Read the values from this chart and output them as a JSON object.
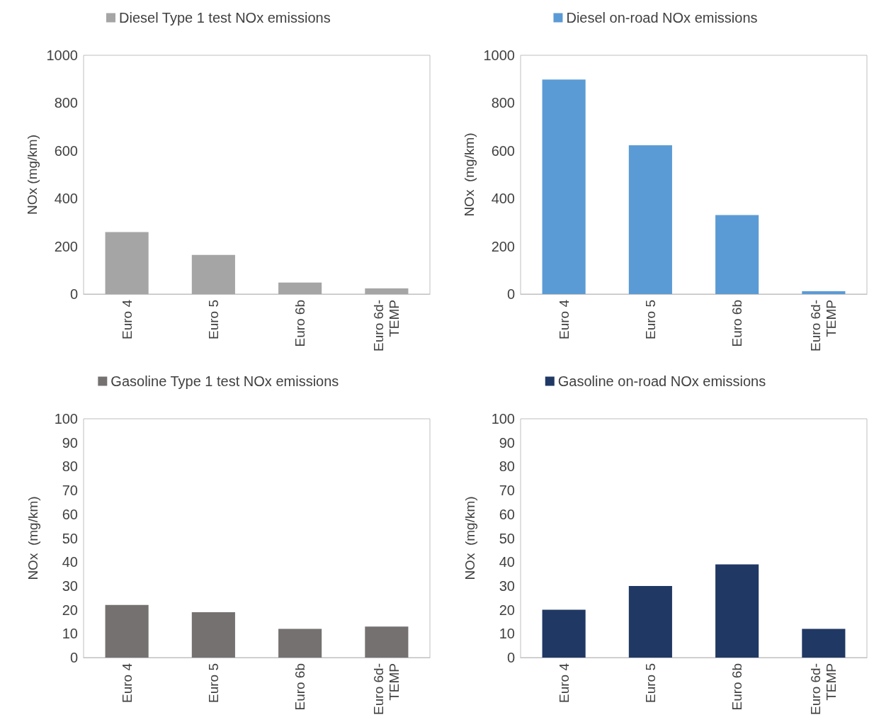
{
  "chart_data": [
    {
      "type": "bar",
      "categories": [
        "Euro 4",
        "Euro 5",
        "Euro 6b",
        "Euro 6d-TEMP"
      ],
      "series": [
        {
          "name": "Diesel Type 1 test NOx emissions",
          "color": "#a5a5a5",
          "values": [
            260,
            164,
            48,
            24
          ]
        }
      ],
      "ylabel": "NOx (mg/km)",
      "ylim": [
        0,
        1000
      ],
      "yticks": [
        0,
        200,
        400,
        600,
        800,
        1000
      ],
      "legend": "top",
      "grid": false
    },
    {
      "type": "bar",
      "categories": [
        "Euro 4",
        "Euro 5",
        "Euro 6b",
        "Euro 6d-TEMP"
      ],
      "series": [
        {
          "name": "Diesel on-road NOx emissions",
          "color": "#5b9bd5",
          "values": [
            898,
            623,
            331,
            12
          ]
        }
      ],
      "ylabel": "NOx  (mg/km)",
      "ylim": [
        0,
        1000
      ],
      "yticks": [
        0,
        200,
        400,
        600,
        800,
        1000
      ],
      "legend": "top",
      "grid": false
    },
    {
      "type": "bar",
      "categories": [
        "Euro 4",
        "Euro 5",
        "Euro 6b",
        "Euro 6d-TEMP"
      ],
      "series": [
        {
          "name": "Gasoline Type 1 test NOx emissions",
          "color": "#767171",
          "values": [
            22,
            19,
            12,
            13
          ]
        }
      ],
      "ylabel": "NOx  (mg/km)",
      "ylim": [
        0,
        100
      ],
      "yticks": [
        0,
        10,
        20,
        30,
        40,
        50,
        60,
        70,
        80,
        90,
        100
      ],
      "legend": "top",
      "grid": false
    },
    {
      "type": "bar",
      "categories": [
        "Euro 4",
        "Euro 5",
        "Euro 6b",
        "Euro 6d-TEMP"
      ],
      "series": [
        {
          "name": "Gasoline on-road NOx emissions",
          "color": "#203864",
          "values": [
            20,
            30,
            39,
            12
          ]
        }
      ],
      "ylabel": "NOx  (mg/km)",
      "ylim": [
        0,
        100
      ],
      "yticks": [
        0,
        10,
        20,
        30,
        40,
        50,
        60,
        70,
        80,
        90,
        100
      ],
      "legend": "top",
      "grid": false
    }
  ]
}
